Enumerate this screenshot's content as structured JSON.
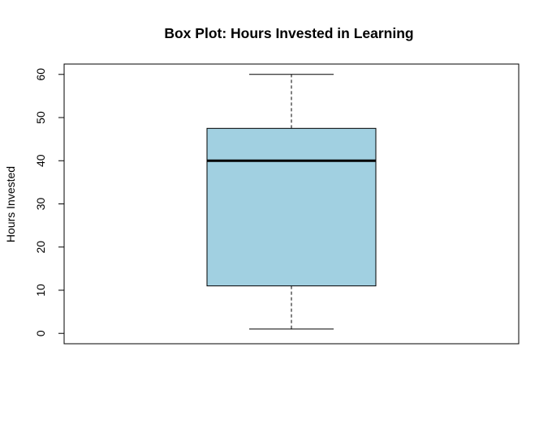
{
  "chart_data": {
    "type": "boxplot",
    "title": "Box Plot: Hours Invested in Learning",
    "xlabel": "",
    "ylabel": "Hours Invested",
    "ylim": [
      -2.4,
      62.4
    ],
    "yticks": [
      0,
      10,
      20,
      30,
      40,
      50,
      60
    ],
    "ytick_labels": [
      "0",
      "10",
      "20",
      "30",
      "40",
      "50",
      "60"
    ],
    "grid": false,
    "box": {
      "whisker_low": 1,
      "q1": 11,
      "median": 40,
      "q3": 47.5,
      "whisker_high": 60
    },
    "colors": {
      "box_fill": "#a1d0e1",
      "stroke": "#000000"
    }
  }
}
